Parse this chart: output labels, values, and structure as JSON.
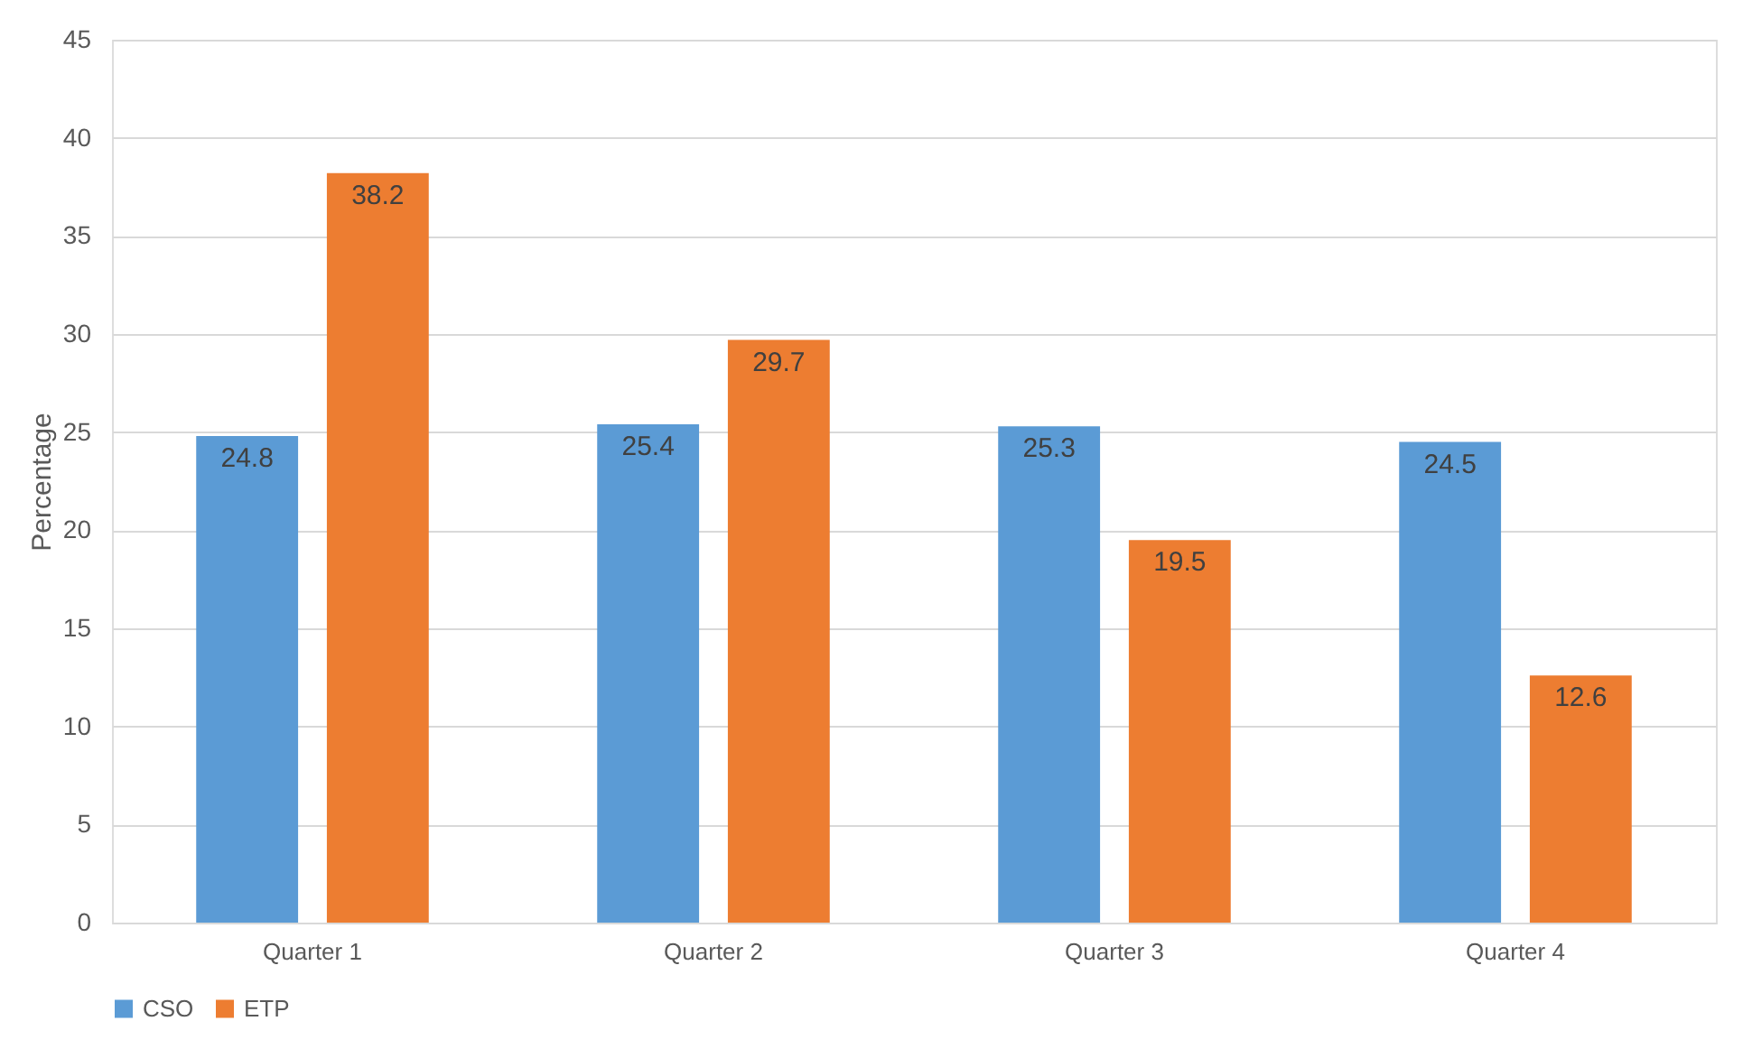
{
  "chart_data": {
    "type": "bar",
    "ylabel": "Percentage",
    "categories": [
      "Quarter 1",
      "Quarter 2",
      "Quarter 3",
      "Quarter 4"
    ],
    "series": [
      {
        "name": "CSO",
        "color": "#5b9bd5",
        "values": [
          24.8,
          25.4,
          25.3,
          24.5
        ]
      },
      {
        "name": "ETP",
        "color": "#ed7d31",
        "values": [
          38.2,
          29.7,
          19.5,
          12.6
        ]
      }
    ],
    "ylim": [
      0,
      45
    ],
    "yticks": [
      0,
      5,
      10,
      15,
      20,
      25,
      30,
      35,
      40,
      45
    ],
    "grid": "y",
    "legend": "bottom",
    "data_labels": true
  }
}
